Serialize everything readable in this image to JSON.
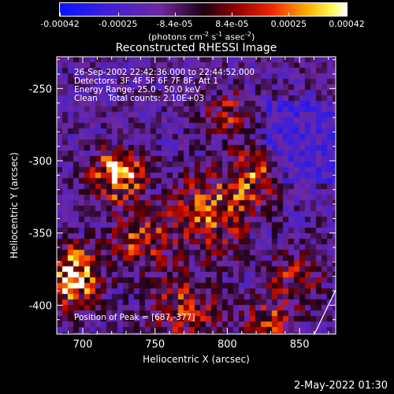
{
  "colorbar": {
    "tick_labels": [
      "-0.00042",
      "-0.00025",
      "-8.4e-05",
      "8.4e-05",
      "0.00025",
      "0.00042"
    ],
    "tick_values": [
      -0.00042,
      -0.00025,
      -8.4e-05,
      8.4e-05,
      0.00025,
      0.00042
    ],
    "range": [
      -0.00042,
      0.00042
    ],
    "unit_label": "(photons cm",
    "unit_sup1": "-2",
    "unit_mid": " s",
    "unit_sup2": "-1",
    "unit_mid2": " asec",
    "unit_sup3": "-2",
    "unit_end": ")",
    "colormap": "rainbow-to-heat (blue→purple→red→yellow→white)"
  },
  "chart_data": {
    "type": "heatmap",
    "title": "Reconstructed RHESSI Image",
    "xlabel": "Heliocentric X (arcsec)",
    "ylabel": "Heliocentric Y (arcsec)",
    "xlim": [
      682,
      875
    ],
    "ylim": [
      -420,
      -228
    ],
    "x_ticks": [
      700,
      750,
      800,
      850
    ],
    "y_ticks": [
      -400,
      -350,
      -300,
      -250
    ],
    "x_tick_labels": [
      "700",
      "750",
      "800",
      "850"
    ],
    "y_tick_labels": [
      "-400",
      "-350",
      "-300",
      "-250"
    ],
    "annotations": [
      "26-Sep-2002 22:42:36.000 to 22:44:52.000",
      "Detectors: 3F 4F 5F 6F 7F 8F, Att 1",
      "Energy Range: 25.0 - 50.0 keV",
      "Clean    Total counts: 2.10E+03"
    ],
    "peak_label": "Position of Peak = [687,-377]",
    "peak_position": [
      687,
      -377
    ]
  },
  "footer": {
    "timestamp": "2-May-2022 01:30"
  }
}
